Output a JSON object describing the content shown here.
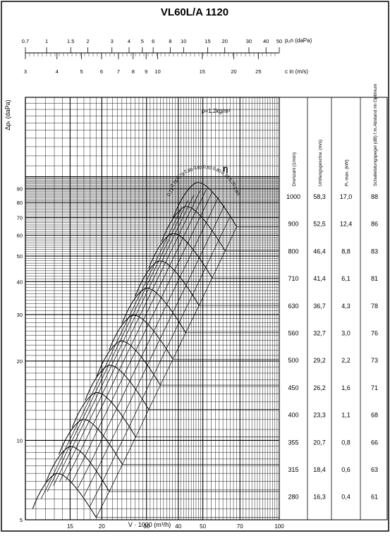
{
  "title": "VL60L/A 1120",
  "scales": {
    "pressure_label": "p₂n (daPa)",
    "pressure_ticks": [
      "0.7",
      "1",
      "1.5",
      "2",
      "3",
      "4",
      "5",
      "6",
      "8",
      "10",
      "15",
      "20",
      "30",
      "40",
      "50"
    ],
    "velocity_label": "c in (m/s)",
    "velocity_ticks": [
      "3",
      "4",
      "5",
      "6",
      "7",
      "8",
      "9",
      "10",
      "15",
      "20",
      "25"
    ]
  },
  "chart_data": {
    "type": "line",
    "title": "VL60L/A 1120",
    "xlabel": "V · 1000 (m³/h)",
    "ylabel": "Δpₜ (daPa)",
    "xscale": "log",
    "yscale": "log",
    "xlim": [
      10,
      100
    ],
    "ylim": [
      5,
      200
    ],
    "x_ticks": [
      "15",
      "20",
      "30",
      "40",
      "50",
      "70",
      "100"
    ],
    "x_tick_values": [
      15,
      20,
      30,
      40,
      50,
      70,
      100
    ],
    "y_ticks": [
      "5",
      "10",
      "20",
      "30",
      "40",
      "50",
      "60",
      "70",
      "80",
      "90"
    ],
    "y_tick_values": [
      5,
      10,
      20,
      30,
      40,
      50,
      60,
      70,
      80,
      90
    ],
    "grid": true,
    "density_note": "ρ=1,2kg/m³",
    "efficiency_symbol": "η",
    "efficiency_labels": [
      "0,72",
      "0,75",
      "0,78",
      "0,80",
      "0,82",
      "0,83",
      "0,80",
      "0,76",
      "0,70",
      "0,60"
    ],
    "speed_curves": [
      {
        "rpm": 1000,
        "x": [
          44.0,
          68.0
        ],
        "y": [
          86.4,
          64.6
        ]
      },
      {
        "rpm": 900,
        "x": [
          39.6,
          61.2
        ],
        "y": [
          70.0,
          52.3
        ]
      },
      {
        "rpm": 800,
        "x": [
          35.2,
          54.4
        ],
        "y": [
          55.3,
          41.3
        ]
      },
      {
        "rpm": 710,
        "x": [
          31.2,
          48.3
        ],
        "y": [
          43.5,
          32.5
        ]
      },
      {
        "rpm": 630,
        "x": [
          27.7,
          42.8
        ],
        "y": [
          34.3,
          25.6
        ]
      },
      {
        "rpm": 560,
        "x": [
          24.6,
          38.1
        ],
        "y": [
          27.1,
          20.3
        ]
      },
      {
        "rpm": 500,
        "x": [
          22.0,
          34.0
        ],
        "y": [
          21.6,
          16.2
        ]
      },
      {
        "rpm": 450,
        "x": [
          19.8,
          30.6
        ],
        "y": [
          17.5,
          13.1
        ]
      },
      {
        "rpm": 400,
        "x": [
          17.6,
          27.2
        ],
        "y": [
          13.8,
          10.3
        ]
      },
      {
        "rpm": 355,
        "x": [
          15.6,
          24.1
        ],
        "y": [
          10.9,
          8.1
        ]
      },
      {
        "rpm": 315,
        "x": [
          13.9,
          21.4
        ],
        "y": [
          8.6,
          6.4
        ]
      },
      {
        "rpm": 280,
        "x": [
          12.3,
          19.0
        ],
        "y": [
          6.8,
          5.1
        ]
      }
    ],
    "table": {
      "headers": [
        "Drehzahl (1/min)",
        "Umfangsgeschw. (m/s)",
        "Pᵥ max. (kW)",
        "Schalleistungspegel (dB) f.m.Abstand im Optimum"
      ],
      "rows": [
        [
          "1000",
          "58,3",
          "17,0",
          "88"
        ],
        [
          "900",
          "52,5",
          "12,4",
          "86"
        ],
        [
          "800",
          "46,4",
          "8,8",
          "83"
        ],
        [
          "710",
          "41,4",
          "6,1",
          "81"
        ],
        [
          "630",
          "36,7",
          "4,3",
          "78"
        ],
        [
          "560",
          "32,7",
          "3,0",
          "76"
        ],
        [
          "500",
          "29,2",
          "2,2",
          "73"
        ],
        [
          "450",
          "26,2",
          "1,6",
          "71"
        ],
        [
          "400",
          "23,3",
          "1,1",
          "68"
        ],
        [
          "355",
          "20,7",
          "0,8",
          "66"
        ],
        [
          "315",
          "18,4",
          "0,6",
          "63"
        ],
        [
          "280",
          "16,3",
          "0,4",
          "61"
        ]
      ]
    }
  }
}
